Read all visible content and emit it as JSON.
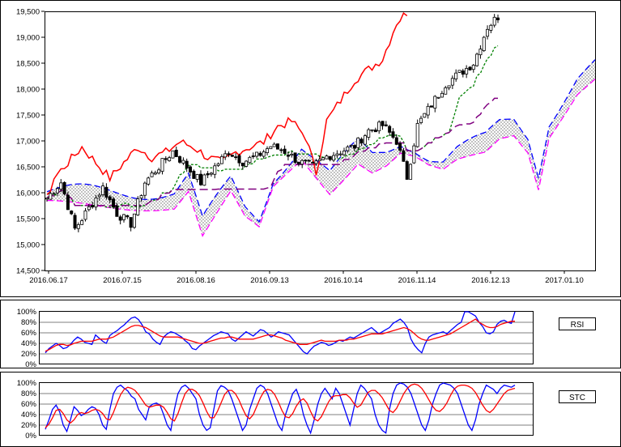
{
  "chart_data": [
    {
      "type": "candlestick-ichimoku",
      "yticks": [
        "19,500",
        "19,000",
        "18,500",
        "18,000",
        "17,500",
        "17,000",
        "16,500",
        "16,000",
        "15,500",
        "15,000",
        "14,500"
      ],
      "xticks": [
        "2016.06.17",
        "2016.07.15",
        "2016.08.16",
        "2016.09.13",
        "2016.10.14",
        "2016.11.14",
        "2016.12.13",
        "2017.01.10"
      ],
      "ylim": [
        14500,
        19500
      ],
      "colors": {
        "tenkan": "#ff0000",
        "kijun": "#008000",
        "senkou_a": "#0000ff",
        "senkou_b": "#ff00ff",
        "chikou_purple": "#800080",
        "cloud": "#bbbbbb"
      },
      "grid": false
    },
    {
      "type": "line",
      "label": "RSI",
      "yticks": [
        "100%",
        "80%",
        "60%",
        "40%",
        "20%",
        "0%"
      ],
      "ylim": [
        0,
        100
      ],
      "series": [
        {
          "color": "#0000ff",
          "values": [
            22,
            30,
            35,
            40,
            36,
            30,
            32,
            38,
            46,
            52,
            48,
            42,
            40,
            38,
            56,
            50,
            44,
            40,
            55,
            60,
            64,
            70,
            75,
            82,
            88,
            90,
            85,
            75,
            62,
            58,
            48,
            42,
            38,
            52,
            58,
            62,
            60,
            56,
            52,
            45,
            40,
            30,
            28,
            35,
            40,
            45,
            50,
            55,
            58,
            62,
            60,
            58,
            48,
            44,
            50,
            56,
            62,
            58,
            54,
            60,
            66,
            64,
            58,
            52,
            56,
            62,
            60,
            58,
            56,
            48,
            40,
            32,
            24,
            20,
            28,
            35,
            38,
            42,
            40,
            36,
            38,
            42,
            46,
            44,
            48,
            52,
            50,
            54,
            58,
            62,
            66,
            70,
            64,
            58,
            62,
            66,
            70,
            78,
            82,
            86,
            80,
            70,
            48,
            36,
            28,
            22,
            40,
            52,
            56,
            58,
            60,
            62,
            58,
            64,
            70,
            76,
            80,
            100,
            100,
            96,
            92,
            80,
            72,
            60,
            58,
            62,
            76,
            82,
            84,
            80,
            78,
            100
          ]
        },
        {
          "color": "#ff0000",
          "values": [
            25,
            28,
            32,
            36,
            38,
            38,
            36,
            37,
            40,
            42,
            44,
            44,
            44,
            44,
            46,
            48,
            48,
            48,
            50,
            52,
            56,
            60,
            64,
            68,
            72,
            74,
            74,
            72,
            70,
            66,
            62,
            58,
            54,
            52,
            52,
            52,
            52,
            52,
            50,
            48,
            46,
            44,
            42,
            40,
            40,
            42,
            44,
            46,
            48,
            50,
            50,
            52,
            52,
            50,
            48,
            48,
            48,
            48,
            48,
            50,
            52,
            54,
            56,
            56,
            54,
            52,
            50,
            46,
            44,
            42,
            40,
            38,
            38,
            38,
            40,
            42,
            44,
            46,
            44,
            44,
            44,
            44,
            46,
            46,
            46,
            48,
            48,
            50,
            52,
            54,
            56,
            58,
            58,
            58,
            58,
            60,
            62,
            64,
            66,
            68,
            70,
            68,
            64,
            58,
            52,
            48,
            46,
            46,
            48,
            50,
            52,
            54,
            56,
            58,
            62,
            66,
            70,
            74,
            78,
            82,
            86,
            80,
            76,
            72,
            70,
            70,
            72,
            76,
            78,
            80,
            82,
            82
          ]
        }
      ]
    },
    {
      "type": "line",
      "label": "STC",
      "yticks": [
        "100%",
        "80%",
        "60%",
        "40%",
        "20%",
        "0%"
      ],
      "ylim": [
        0,
        100
      ],
      "series": [
        {
          "color": "#0000ff",
          "values": [
            12,
            30,
            50,
            58,
            45,
            20,
            8,
            30,
            55,
            48,
            38,
            42,
            50,
            55,
            52,
            40,
            20,
            12,
            50,
            80,
            92,
            96,
            90,
            85,
            75,
            70,
            50,
            40,
            30,
            55,
            60,
            62,
            58,
            40,
            20,
            10,
            50,
            80,
            92,
            96,
            90,
            80,
            70,
            40,
            20,
            10,
            15,
            50,
            85,
            95,
            92,
            86,
            70,
            50,
            30,
            10,
            20,
            50,
            70,
            90,
            96,
            92,
            80,
            60,
            40,
            20,
            10,
            40,
            60,
            80,
            88,
            70,
            40,
            20,
            5,
            30,
            60,
            80,
            90,
            80,
            70,
            90,
            80,
            60,
            40,
            20,
            50,
            80,
            96,
            90,
            80,
            70,
            40,
            20,
            10,
            5,
            50,
            80,
            96,
            100,
            98,
            92,
            80,
            60,
            40,
            20,
            10,
            30,
            60,
            80,
            96,
            100,
            98,
            96,
            90,
            80,
            60,
            40,
            20,
            10,
            30,
            60,
            80,
            96,
            92,
            88,
            80,
            90,
            96,
            94,
            92,
            96
          ]
        },
        {
          "color": "#ff0000",
          "values": [
            15,
            22,
            34,
            48,
            50,
            42,
            30,
            24,
            30,
            40,
            44,
            42,
            44,
            48,
            50,
            48,
            42,
            32,
            30,
            44,
            62,
            78,
            88,
            92,
            90,
            86,
            78,
            68,
            58,
            54,
            56,
            58,
            58,
            54,
            44,
            32,
            28,
            42,
            62,
            80,
            88,
            88,
            84,
            76,
            62,
            46,
            34,
            34,
            46,
            62,
            78,
            86,
            86,
            80,
            68,
            52,
            38,
            32,
            40,
            56,
            72,
            84,
            88,
            86,
            78,
            64,
            48,
            36,
            34,
            42,
            56,
            66,
            70,
            62,
            46,
            32,
            28,
            36,
            50,
            64,
            74,
            76,
            76,
            78,
            78,
            72,
            62,
            54,
            58,
            70,
            82,
            86,
            86,
            80,
            72,
            60,
            48,
            44,
            52,
            66,
            80,
            90,
            96,
            98,
            96,
            90,
            80,
            68,
            56,
            48,
            46,
            52,
            62,
            76,
            88,
            94,
            96,
            96,
            94,
            90,
            82,
            70,
            58,
            48,
            44,
            50,
            60,
            70,
            80,
            86,
            88,
            90
          ]
        }
      ]
    }
  ]
}
